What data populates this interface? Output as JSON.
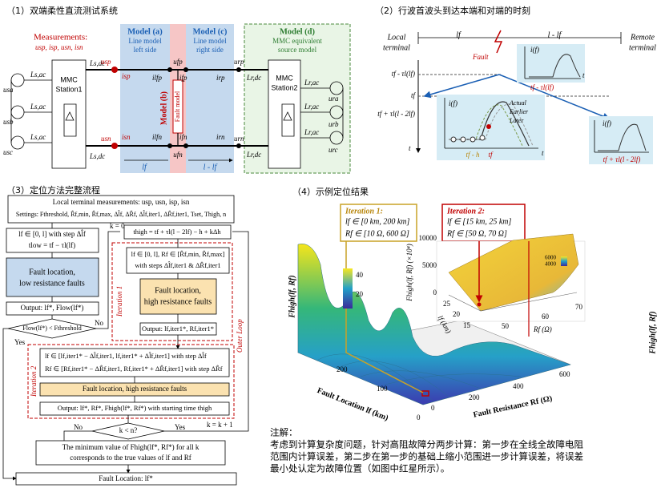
{
  "panel1": {
    "title": "（1）双端柔性直流测试系统",
    "measurements": "Measurements:",
    "meas_vars": "usp, isp, usn, isn",
    "station1": [
      "MMC",
      "Station1"
    ],
    "station2": [
      "MMC",
      "Station2"
    ],
    "model_a": "Model (a)",
    "model_a_desc": [
      "Line model",
      "left side"
    ],
    "model_b": "Model (b)",
    "model_b_desc": "Fault model",
    "model_c": "Model (c)",
    "model_c_desc": [
      "Line model",
      "right side"
    ],
    "model_d": "Model (d)",
    "model_d_desc": [
      "MMC equivalent",
      "source model"
    ],
    "sym": {
      "usa": "usa",
      "usb": "usb",
      "usc": "usc",
      "lsac": "Ls,ac",
      "lsdc": "Ls,dc",
      "usp": "usp",
      "isp": "isp",
      "usn": "usn",
      "isn": "isn",
      "ilfp": "ilfp",
      "ifp": "ifp",
      "irp": "irp",
      "ilfn": "ilfn",
      "ifn": "ifn",
      "irn": "irn",
      "ufp": "ufp",
      "ufn": "ufn",
      "urp": "urp",
      "urn": "urn",
      "lrdc": "Lr,dc",
      "lrac": "Lr,ac",
      "ura": "ura",
      "urb": "urb",
      "urc": "urc",
      "lf": "lf",
      "l_lf": "l - lf"
    }
  },
  "panel2": {
    "title": "（2）行波首波头到达本端和对端的时刻",
    "local": [
      "Local",
      "terminal"
    ],
    "remote": [
      "Remote",
      "terminal"
    ],
    "lf": "lf",
    "l_lf": "l - lf",
    "fault": "Fault",
    "t_axis": "t",
    "t1": "tf - τl(lf)",
    "t2": "tf",
    "t3": "tf + τl(l - 2lf)",
    "if": "i(f)",
    "legend": [
      "Actual",
      "Earlier",
      "Later"
    ],
    "th": "tf - h",
    "tf": "tf",
    "inset1": "tf - τl(lf)",
    "inset3": "tf + τl(l - 2lf)"
  },
  "panel3": {
    "title": "（3）定位方法完整流程",
    "top": [
      "Local terminal measurements: usp, usn, isp, isn",
      "Settings: Fthreshold, R̂f,min, R̂f,max, Δl̂f, ΔR̂f, Δl̂f,iter1, ΔR̂f,iter1, Tset, Thigh, n"
    ],
    "left_box": [
      "lf ∈ [0, l] with step Δl̂f",
      "tlow = tf − τl(lf)"
    ],
    "low_box": [
      "Fault location,",
      "low resistance faults"
    ],
    "low_out": "Output: lf*, Flow(lf*)",
    "decision1": "Flow(lf*) < Fthreshold",
    "no": "No",
    "yes": "Yes",
    "k0": "k = 0",
    "thigh": "thigh = tf + τl(l − 2lf) − h + kΔh",
    "iter1_box": [
      "lf ∈ [0, l], Rf ∈ [R̂f,min, R̂f,max]",
      "with steps Δl̂f,iter1 & ΔR̂f,iter1"
    ],
    "high_box": [
      "Fault location,",
      "high resistance faults"
    ],
    "iter1_out": "Output: lf,iter1*, Rf,iter1*",
    "iter1": "Iteration 1",
    "outer": "Outer Loop",
    "iter2": "Iteration 2",
    "iter2_box": [
      "lf ∈ [lf,iter1* − Δl̂f,iter1, lf,iter1* + Δl̂f,iter1]  with step Δl̂f",
      "Rf ∈ [Rf,iter1* − ΔR̂f,iter1, Rf,iter1* + ΔR̂f,iter1] with step ΔR̂f"
    ],
    "high2": "Fault location, high resistance faults",
    "iter2_out": "Output: lf*, Rf*, Fhigh(lf*, Rf*) with starting time thigh",
    "decision2": "k < n?",
    "kinc": "k = k + 1",
    "min_box": [
      "The minimum value of Fhigh(lf*, Rf*) for all k",
      "corresponds to the true values of lf and Rf"
    ],
    "final": "Fault Location: lf*"
  },
  "panel4": {
    "title": "（4）示例定位结果",
    "iter1": [
      "Iteration 1:",
      "lf ∈ [0 km, 200 km]",
      "Rf ∈ [10 Ω, 600 Ω]"
    ],
    "iter2": [
      "Iteration 2:",
      "lf ∈ [15 km, 25 km]",
      "Rf ∈ [50 Ω, 70 Ω]"
    ],
    "x_label": "Fault Location lf (km)",
    "y_label": "Fault Resistance Rf (Ω)",
    "z_label": "Fhigh(lf, Rf)",
    "x_ticks": [
      0,
      100,
      200
    ],
    "y_ticks": [
      0,
      200,
      400,
      600
    ],
    "cbar_ticks": [
      40,
      20
    ],
    "inset": {
      "z_label": "Fhigh(lf, Rf) (×10⁴)",
      "z_ticks": [
        10000,
        5000,
        0
      ],
      "x_label": "lf (km)",
      "x_ticks": [
        25,
        20,
        15
      ],
      "y_label": "Rf (Ω)",
      "y_ticks": [
        50,
        60,
        70
      ],
      "cbar_ticks": [
        6000,
        4000
      ]
    },
    "right_label": "Fhigh(lf, Rf)",
    "note_title": "注解：",
    "note": [
      "考虑到计算复杂度问题，针对高阻故障分两步计算：第一步在全线全故障电阻",
      "范围内计算误差，第二步在第一步的基础上缩小范围进一步计算误差，将误差",
      "最小处认定为故障位置（如图中红星所示）。"
    ]
  }
}
